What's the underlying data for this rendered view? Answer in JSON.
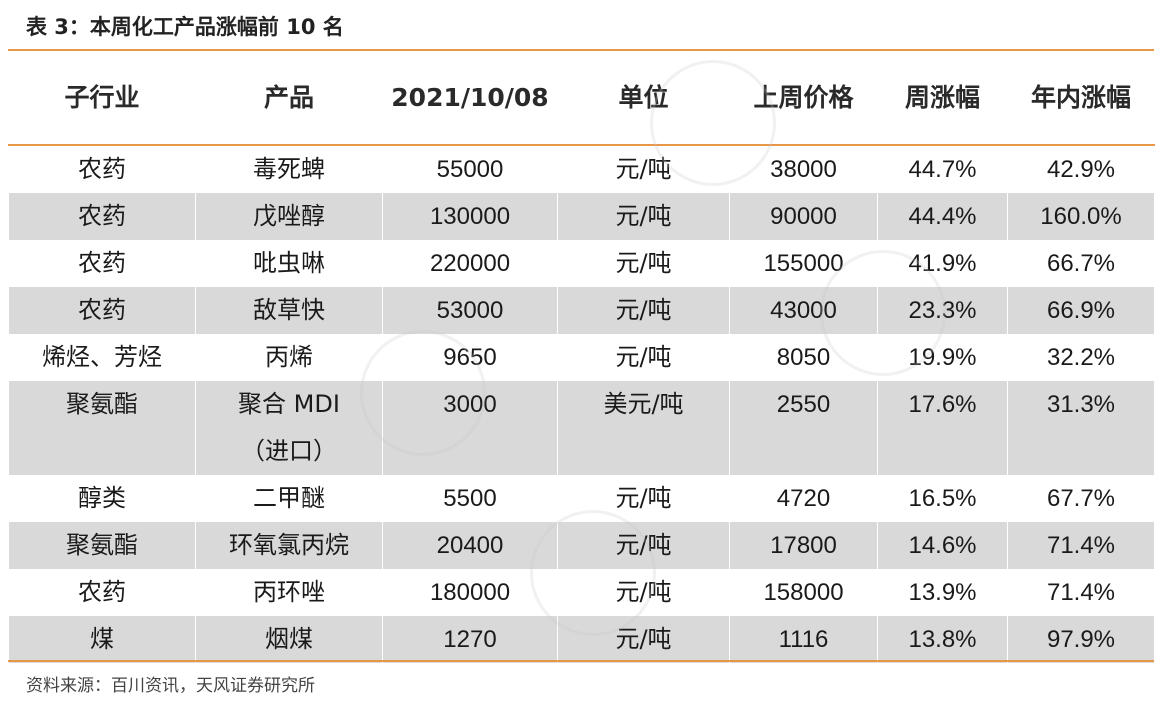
{
  "title": "表 3：本周化工产品涨幅前 10 名",
  "table": {
    "headers": [
      "子行业",
      "产品",
      "2021/10/08",
      "单位",
      "上周价格",
      "周涨幅",
      "年内涨幅"
    ],
    "rows": [
      {
        "sector": "农药",
        "product": "毒死蜱",
        "price": "55000",
        "unit": "元/吨",
        "last_week": "38000",
        "weekly": "44.7%",
        "ytd": "42.9%"
      },
      {
        "sector": "农药",
        "product": "戊唑醇",
        "price": "130000",
        "unit": "元/吨",
        "last_week": "90000",
        "weekly": "44.4%",
        "ytd": "160.0%"
      },
      {
        "sector": "农药",
        "product": "吡虫啉",
        "price": "220000",
        "unit": "元/吨",
        "last_week": "155000",
        "weekly": "41.9%",
        "ytd": "66.7%"
      },
      {
        "sector": "农药",
        "product": "敌草快",
        "price": "53000",
        "unit": "元/吨",
        "last_week": "43000",
        "weekly": "23.3%",
        "ytd": "66.9%"
      },
      {
        "sector": "烯烃、芳烃",
        "product": "丙烯",
        "price": "9650",
        "unit": "元/吨",
        "last_week": "8050",
        "weekly": "19.9%",
        "ytd": "32.2%"
      },
      {
        "sector": "聚氨酯",
        "product": "聚合 MDI（进口）",
        "price": "3000",
        "unit": "美元/吨",
        "last_week": "2550",
        "weekly": "17.6%",
        "ytd": "31.3%"
      },
      {
        "sector": "醇类",
        "product": "二甲醚",
        "price": "5500",
        "unit": "元/吨",
        "last_week": "4720",
        "weekly": "16.5%",
        "ytd": "67.7%"
      },
      {
        "sector": "聚氨酯",
        "product": "环氧氯丙烷",
        "price": "20400",
        "unit": "元/吨",
        "last_week": "17800",
        "weekly": "14.6%",
        "ytd": "71.4%"
      },
      {
        "sector": "农药",
        "product": "丙环唑",
        "price": "180000",
        "unit": "元/吨",
        "last_week": "158000",
        "weekly": "13.9%",
        "ytd": "71.4%"
      },
      {
        "sector": "煤",
        "product": "烟煤",
        "price": "1270",
        "unit": "元/吨",
        "last_week": "1116",
        "weekly": "13.8%",
        "ytd": "97.9%"
      }
    ]
  },
  "source": "资料来源：百川资讯，天风证券研究所",
  "colors": {
    "accent_line": "#e8964a",
    "row_shade": "#d9d9d9"
  }
}
